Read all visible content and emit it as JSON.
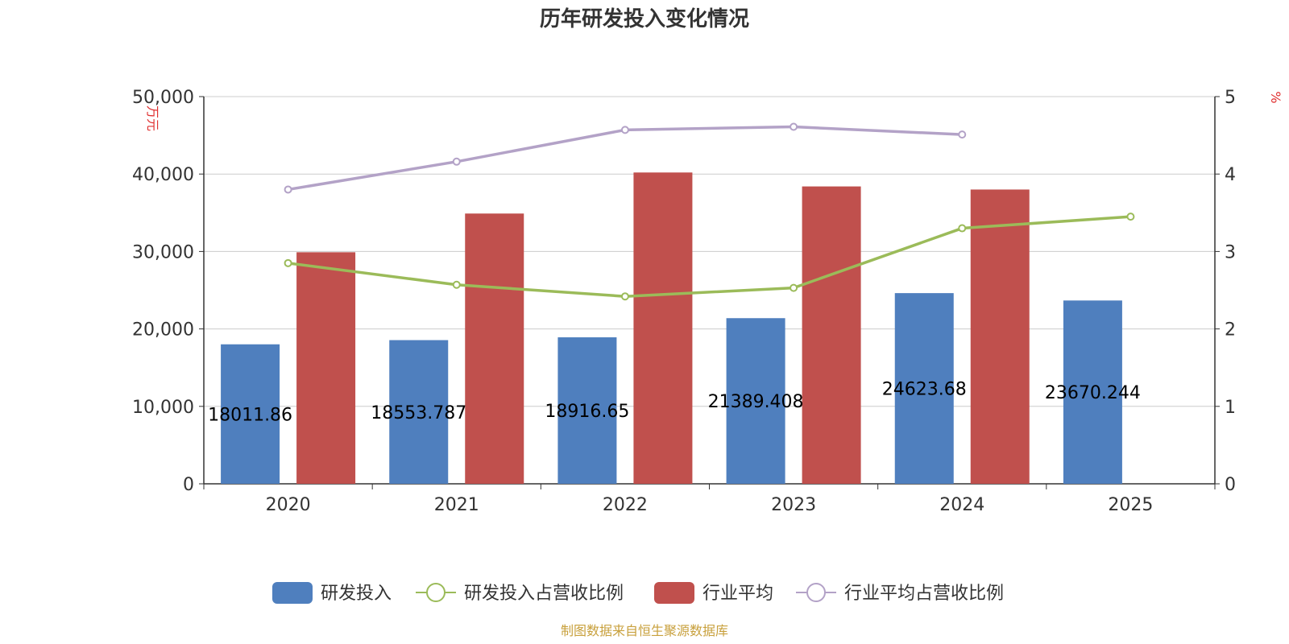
{
  "chart_data": {
    "type": "bar",
    "title": "历年研发投入变化情况",
    "categories": [
      "2020",
      "2021",
      "2022",
      "2023",
      "2024",
      "2025"
    ],
    "y_left": {
      "unit": "万元",
      "ticks": [
        "0",
        "10,000",
        "20,000",
        "30,000",
        "40,000",
        "50,000"
      ],
      "range": [
        0,
        50000
      ]
    },
    "y_right": {
      "unit": "%",
      "ticks": [
        "0",
        "1",
        "2",
        "3",
        "4",
        "5"
      ],
      "range": [
        0,
        5
      ]
    },
    "grid": true,
    "legend_position": "bottom",
    "series": [
      {
        "name": "研发投入",
        "type": "bar",
        "axis": "left",
        "color": "#4f7fbe",
        "values": [
          18011.86,
          18553.787,
          18916.65,
          21389.408,
          24623.68,
          23670.244
        ],
        "labels": [
          "18011.86",
          "18553.787",
          "18916.65",
          "21389.408",
          "24623.68",
          "23670.244"
        ]
      },
      {
        "name": "研发投入占营收比例",
        "type": "line",
        "axis": "right",
        "color": "#9bbb59",
        "values": [
          2.85,
          2.57,
          2.42,
          2.53,
          3.3,
          3.45
        ]
      },
      {
        "name": "行业平均",
        "type": "bar",
        "axis": "left",
        "color": "#c0504d",
        "values": [
          29900,
          34900,
          40200,
          38400,
          38000,
          null
        ]
      },
      {
        "name": "行业平均占营收比例",
        "type": "line",
        "axis": "right",
        "color": "#b3a2c7",
        "values": [
          3.8,
          4.16,
          4.57,
          4.61,
          4.51,
          null
        ]
      }
    ]
  },
  "footer": {
    "source": "制图数据来自恒生聚源数据库",
    "source_color": "#c8a03c"
  }
}
